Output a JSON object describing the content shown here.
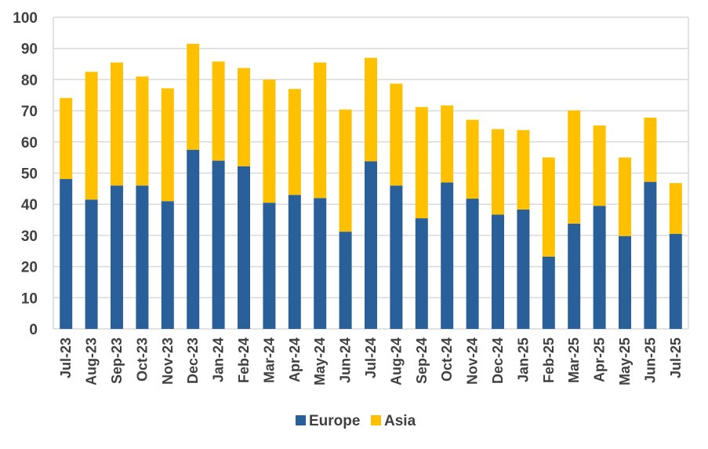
{
  "chart_data": {
    "type": "bar",
    "stacked": true,
    "categories": [
      "Jul-23",
      "Aug-23",
      "Sep-23",
      "Oct-23",
      "Nov-23",
      "Dec-23",
      "Jan-24",
      "Feb-24",
      "Mar-24",
      "Apr-24",
      "May-24",
      "Jun-24",
      "Jul-24",
      "Aug-24",
      "Sep-24",
      "Oct-24",
      "Nov-24",
      "Dec-24",
      "Jan-25",
      "Feb-25",
      "Mar-25",
      "Apr-25",
      "May-25",
      "Jun-25",
      "Jul-25"
    ],
    "series": [
      {
        "name": "Europe",
        "color": "#2a6099",
        "values": [
          48.1,
          41.5,
          46.0,
          46.0,
          41.0,
          57.5,
          54.0,
          52.2,
          40.5,
          43.0,
          42.0,
          31.2,
          53.8,
          46.0,
          35.5,
          47.0,
          41.8,
          36.7,
          38.3,
          23.2,
          33.8,
          39.5,
          29.8,
          47.2,
          30.5
        ]
      },
      {
        "name": "Asia",
        "color": "#ffc000",
        "values": [
          26.0,
          41.0,
          39.5,
          35.0,
          36.2,
          34.0,
          31.8,
          31.5,
          39.5,
          34.0,
          43.5,
          39.2,
          33.2,
          32.7,
          35.7,
          24.7,
          25.3,
          27.4,
          25.5,
          31.8,
          36.3,
          25.8,
          25.2,
          20.6,
          16.3
        ]
      }
    ],
    "yticks": [
      "0",
      "10",
      "20",
      "30",
      "40",
      "50",
      "60",
      "70",
      "80",
      "90",
      "100"
    ],
    "ylim": [
      0,
      100
    ],
    "grid": true,
    "legend_position": "bottom-center",
    "title": "",
    "xlabel": "",
    "ylabel": ""
  }
}
